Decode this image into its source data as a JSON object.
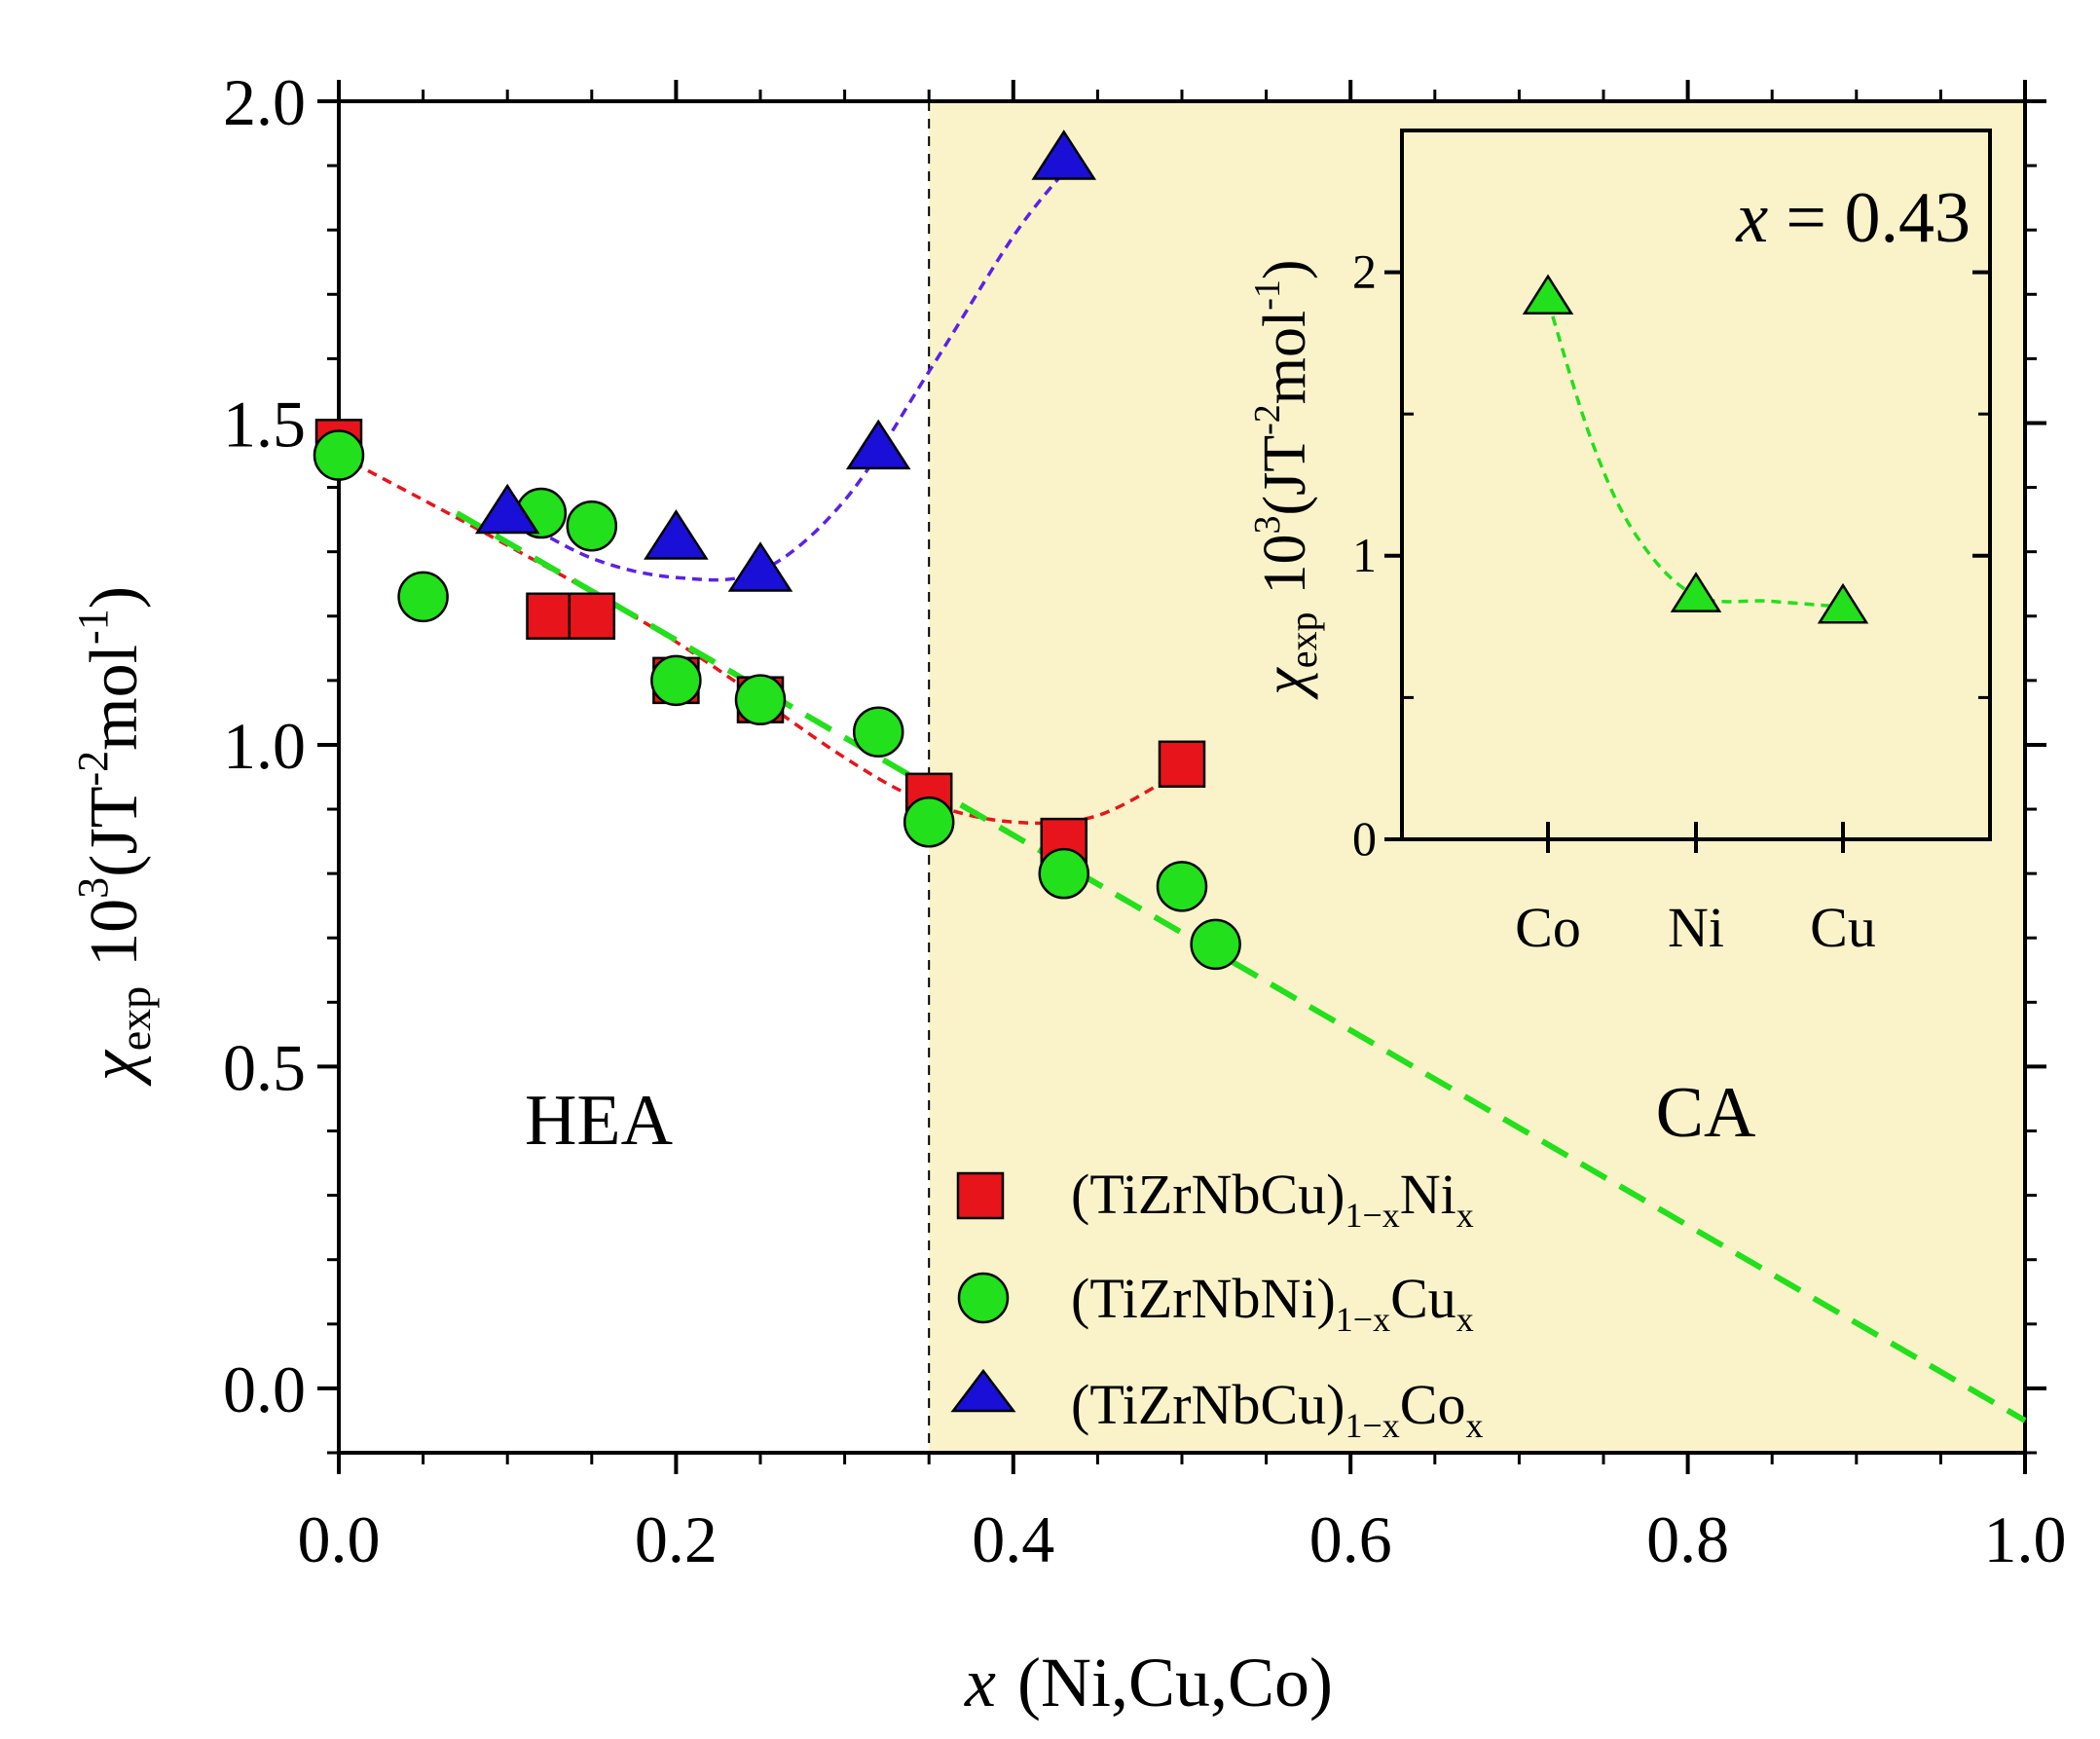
{
  "colors": {
    "ca_region": "#FAF3C9",
    "ni_series": "#E8141B",
    "cu_series": "#22E01B",
    "co_series": "#1A0FD6",
    "ni_fit": "#E8141B",
    "co_fit": "#5A22E6",
    "linear_fit": "#22E01B",
    "inset_marker": "#22E01B"
  },
  "chart_data": [
    {
      "id": "main",
      "type": "scatter",
      "xlabel_italic": "x",
      "xlabel_rest": "(Ni,Cu,Co)",
      "ylabel_chi": "χ",
      "ylabel_sub": "exp",
      "ylabel_main": "10",
      "ylabel_exp": "3",
      "ylabel_paren_open": "(JT",
      "ylabel_exp2": "-2",
      "ylabel_mol": "mol",
      "ylabel_exp3": "-1",
      "ylabel_paren_close": ")",
      "xlim": [
        0.0,
        1.0
      ],
      "ylim": [
        -0.1,
        2.0
      ],
      "x_ticks": [
        "0.0",
        "0.2",
        "0.4",
        "0.6",
        "0.8",
        "1.0"
      ],
      "x_tick_values": [
        0.0,
        0.2,
        0.4,
        0.6,
        0.8,
        1.0
      ],
      "y_ticks": [
        "0.0",
        "0.5",
        "1.0",
        "1.5",
        "2.0"
      ],
      "y_tick_values": [
        0.0,
        0.5,
        1.0,
        1.5,
        2.0
      ],
      "boundary_x": 0.35,
      "region_labels": [
        "HEA",
        "CA"
      ],
      "series": [
        {
          "key": "ni",
          "name_main": "(TiZrNbCu)",
          "name_sub": "1−x",
          "name_el": "Ni",
          "name_sub2": "x",
          "marker": "square",
          "x": [
            0.0,
            0.125,
            0.15,
            0.2,
            0.25,
            0.35,
            0.43,
            0.5
          ],
          "y": [
            1.47,
            1.2,
            1.2,
            1.1,
            1.07,
            0.92,
            0.85,
            0.97
          ]
        },
        {
          "key": "cu",
          "name_main": "(TiZrNbNi)",
          "name_sub": "1−x",
          "name_el": "Cu",
          "name_sub2": "x",
          "marker": "circle",
          "x": [
            0.0,
            0.05,
            0.12,
            0.15,
            0.2,
            0.25,
            0.32,
            0.35,
            0.43,
            0.5,
            0.52
          ],
          "y": [
            1.45,
            1.23,
            1.36,
            1.34,
            1.1,
            1.07,
            1.02,
            0.88,
            0.8,
            0.78,
            0.69
          ]
        },
        {
          "key": "co",
          "name_main": "(TiZrNbCu)",
          "name_sub": "1−x",
          "name_el": "Co",
          "name_sub2": "x",
          "marker": "triangle",
          "x": [
            0.1,
            0.2,
            0.25,
            0.32,
            0.43
          ],
          "y": [
            1.36,
            1.32,
            1.27,
            1.46,
            1.91
          ]
        }
      ],
      "fits": [
        {
          "key": "ni_fit",
          "style": "dashed",
          "x": [
            0.0,
            0.1,
            0.2,
            0.3,
            0.35,
            0.4,
            0.45,
            0.5
          ],
          "y": [
            1.45,
            1.31,
            1.16,
            0.98,
            0.91,
            0.88,
            0.89,
            0.96
          ]
        },
        {
          "key": "co_fit",
          "style": "dashed",
          "x": [
            0.1,
            0.15,
            0.2,
            0.25,
            0.3,
            0.35,
            0.4,
            0.43
          ],
          "y": [
            1.36,
            1.29,
            1.26,
            1.27,
            1.38,
            1.58,
            1.79,
            1.89
          ]
        },
        {
          "key": "linear_fit",
          "style": "long-dashed",
          "x": [
            0.07,
            1.0
          ],
          "y": [
            1.36,
            -0.05
          ]
        }
      ]
    },
    {
      "id": "inset",
      "type": "scatter",
      "annotation_italic": "x",
      "annotation_rest": "= 0.43",
      "ylabel_chi": "χ",
      "ylabel_sub": "exp",
      "ylabel_main": "10",
      "ylabel_exp": "3",
      "ylabel_paren_open": "(JT",
      "ylabel_exp2": "-2",
      "ylabel_mol": "mol",
      "ylabel_exp3": "-1",
      "ylabel_paren_close": ")",
      "ylim": [
        0,
        2.5
      ],
      "y_ticks": [
        "0",
        "1",
        "2"
      ],
      "y_tick_values": [
        0,
        1,
        2
      ],
      "categories": [
        "Co",
        "Ni",
        "Cu"
      ],
      "values": [
        1.91,
        0.86,
        0.82
      ],
      "fit": {
        "x": [
          0,
          0.3,
          0.6,
          1.0,
          1.5,
          2.0
        ],
        "y": [
          1.9,
          1.4,
          1.07,
          0.86,
          0.84,
          0.82
        ]
      }
    }
  ]
}
